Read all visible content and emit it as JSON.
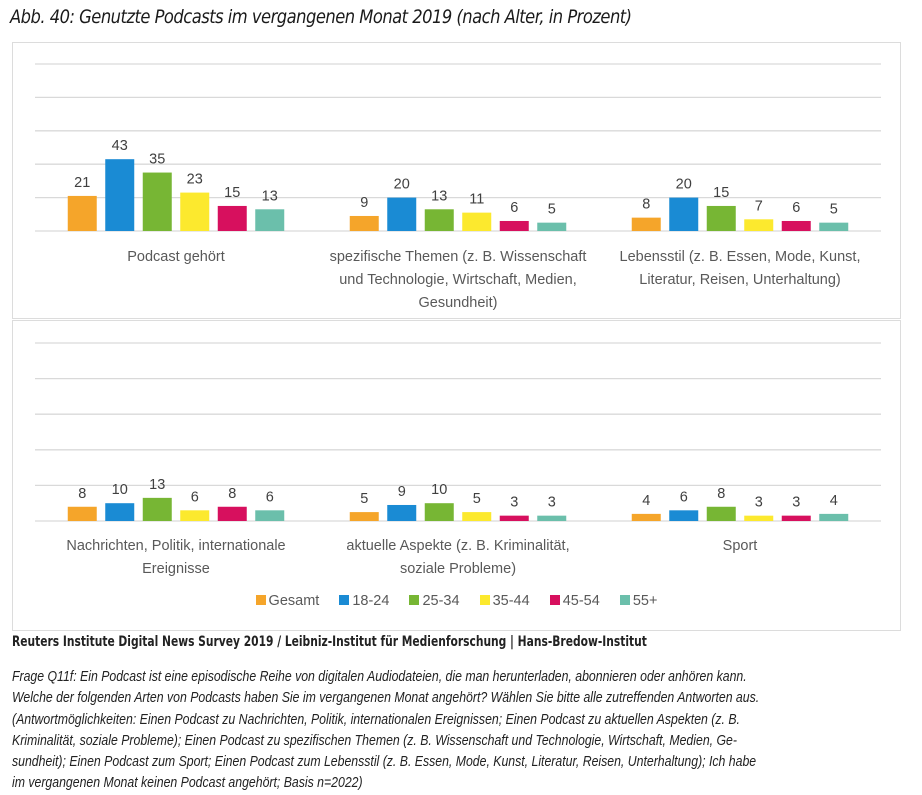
{
  "title": "Abb. 40:  Genutzte Podcasts im vergangenen Monat 2019 (nach Alter, in Prozent)",
  "chart_data": {
    "type": "bar",
    "title": "Genutzte Podcasts im vergangenen Monat 2019 (nach Alter, in Prozent)",
    "xlabel": "",
    "ylabel": "",
    "ylim": [
      0,
      100
    ],
    "gridlines": [
      0,
      20,
      40,
      60,
      80,
      100
    ],
    "grid": true,
    "legend_position": "bottom",
    "series_names": [
      "Gesamt",
      "18-24",
      "25-34",
      "35-44",
      "45-54",
      "55+"
    ],
    "colors": [
      "#F5A52A",
      "#1A8BD4",
      "#77B634",
      "#FCE92E",
      "#D7105E",
      "#6BBFAB"
    ],
    "panels": [
      {
        "categories": [
          [
            "Podcast gehört"
          ],
          [
            "spezifische Themen (z. B. Wissenschaft",
            "und Technologie, Wirtschaft, Medien,",
            "Gesundheit)"
          ],
          [
            "Lebensstil (z. B. Essen, Mode, Kunst,",
            "Literatur, Reisen, Unterhaltung)"
          ]
        ],
        "values": [
          [
            21,
            43,
            35,
            23,
            15,
            13
          ],
          [
            9,
            20,
            13,
            11,
            6,
            5
          ],
          [
            8,
            20,
            15,
            7,
            6,
            5
          ]
        ]
      },
      {
        "categories": [
          [
            "Nachrichten, Politik, internationale",
            "Ereignisse"
          ],
          [
            "aktuelle Aspekte (z. B. Kriminalität,",
            "soziale Probleme)"
          ],
          [
            "Sport"
          ]
        ],
        "values": [
          [
            8,
            10,
            13,
            6,
            8,
            6
          ],
          [
            5,
            9,
            10,
            5,
            3,
            3
          ],
          [
            4,
            6,
            8,
            3,
            3,
            4
          ]
        ]
      }
    ]
  },
  "legend": [
    {
      "label": "Gesamt",
      "color": "#F5A52A"
    },
    {
      "label": "18-24",
      "color": "#1A8BD4"
    },
    {
      "label": "25-34",
      "color": "#77B634"
    },
    {
      "label": "35-44",
      "color": "#FCE92E"
    },
    {
      "label": "45-54",
      "color": "#D7105E"
    },
    {
      "label": "55+",
      "color": "#6BBFAB"
    }
  ],
  "source": "Reuters Institute Digital News Survey 2019 / Leibniz-Institut für Medienforschung | Hans-Bredow-Institut",
  "note": [
    "Frage Q11f: Ein Podcast ist eine episodische Reihe von digitalen Audiodateien, die man herunterladen, abonnieren oder anhören kann.",
    "Welche der folgenden Arten von Podcasts haben Sie im vergangenen Monat angehört? Wählen Sie bitte alle zutreffenden Antworten aus.",
    "(Antwortmöglichkeiten: Einen Podcast zu Nachrichten, Politik, internationalen Ereignissen; Einen Podcast zu aktuellen Aspekten (z. B.",
    "Kriminalität, soziale Probleme); Einen Podcast zu spezifischen Themen (z. B. Wissenschaft und Technologie, Wirtschaft, Medien, Ge-",
    "sundheit); Einen Podcast zum Sport; Einen Podcast zum Lebensstil (z. B. Essen, Mode, Kunst, Literatur, Reisen, Unterhaltung); Ich habe",
    "im vergangenen Monat keinen Podcast angehört; Basis n=2022)"
  ]
}
